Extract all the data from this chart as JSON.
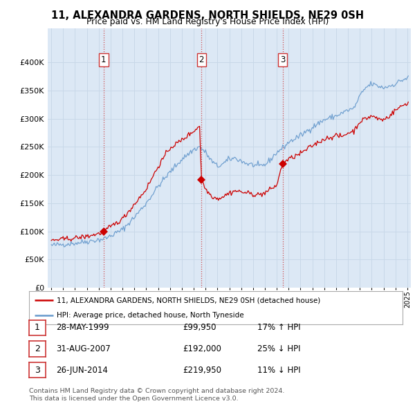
{
  "title": "11, ALEXANDRA GARDENS, NORTH SHIELDS, NE29 0SH",
  "subtitle": "Price paid vs. HM Land Registry's House Price Index (HPI)",
  "legend_line1": "11, ALEXANDRA GARDENS, NORTH SHIELDS, NE29 0SH (detached house)",
  "legend_line2": "HPI: Average price, detached house, North Tyneside",
  "transaction_color": "#cc0000",
  "hpi_color": "#6699cc",
  "vline_color": "#cc3333",
  "grid_color": "#c8d8e8",
  "background_color": "#ffffff",
  "plot_bg_color": "#dce8f5",
  "transactions": [
    {
      "date_num": 1999.41,
      "price": 99950,
      "label": "1"
    },
    {
      "date_num": 2007.66,
      "price": 192000,
      "label": "2"
    },
    {
      "date_num": 2014.49,
      "price": 219950,
      "label": "3"
    }
  ],
  "table_rows": [
    {
      "num": "1",
      "date": "28-MAY-1999",
      "price": "£99,950",
      "note": "17% ↑ HPI"
    },
    {
      "num": "2",
      "date": "31-AUG-2007",
      "price": "£192,000",
      "note": "25% ↓ HPI"
    },
    {
      "num": "3",
      "date": "26-JUN-2014",
      "price": "£219,950",
      "note": "11% ↓ HPI"
    }
  ],
  "footer1": "Contains HM Land Registry data © Crown copyright and database right 2024.",
  "footer2": "This data is licensed under the Open Government Licence v3.0.",
  "ylim": [
    0,
    460000
  ],
  "yticks": [
    0,
    50000,
    100000,
    150000,
    200000,
    250000,
    300000,
    350000,
    400000
  ],
  "ytick_labels": [
    "£0",
    "£50K",
    "£100K",
    "£150K",
    "£200K",
    "£250K",
    "£300K",
    "£350K",
    "£400K"
  ],
  "xlim_start": 1994.7,
  "xlim_end": 2025.3
}
